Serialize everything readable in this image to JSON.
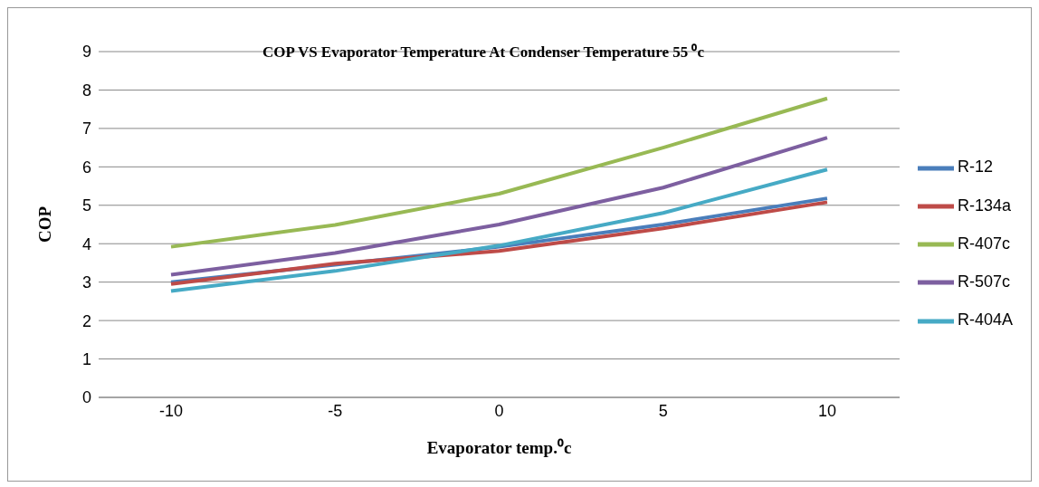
{
  "chart_data": {
    "type": "line",
    "title": "COP VS  Evaporator Temperature At Condenser Temperature 55 ⁰c",
    "xlabel": "Evaporator temp.⁰c",
    "ylabel": "COP",
    "categories": [
      "-10",
      "-5",
      "0",
      "5",
      "10"
    ],
    "series": [
      {
        "name": "R-12",
        "color": "#4a7ebb",
        "values": [
          3.0,
          3.45,
          3.92,
          4.5,
          5.18
        ]
      },
      {
        "name": "R-134a",
        "color": "#be4b48",
        "values": [
          2.95,
          3.48,
          3.81,
          4.4,
          5.08
        ]
      },
      {
        "name": "R-407c",
        "color": "#98b954",
        "values": [
          3.92,
          4.49,
          5.3,
          6.5,
          7.78
        ]
      },
      {
        "name": "R-507c",
        "color": "#7d5fa0",
        "values": [
          3.19,
          3.76,
          4.5,
          5.46,
          6.76
        ]
      },
      {
        "name": "R-404A",
        "color": "#46aac5",
        "values": [
          2.77,
          3.29,
          3.95,
          4.8,
          5.93
        ]
      }
    ],
    "ylim": [
      0,
      9
    ],
    "yticks": [
      0,
      1,
      2,
      3,
      4,
      5,
      6,
      7,
      8,
      9
    ],
    "grid": "y",
    "legend": "right",
    "marker": "none",
    "line_style": "solid"
  }
}
